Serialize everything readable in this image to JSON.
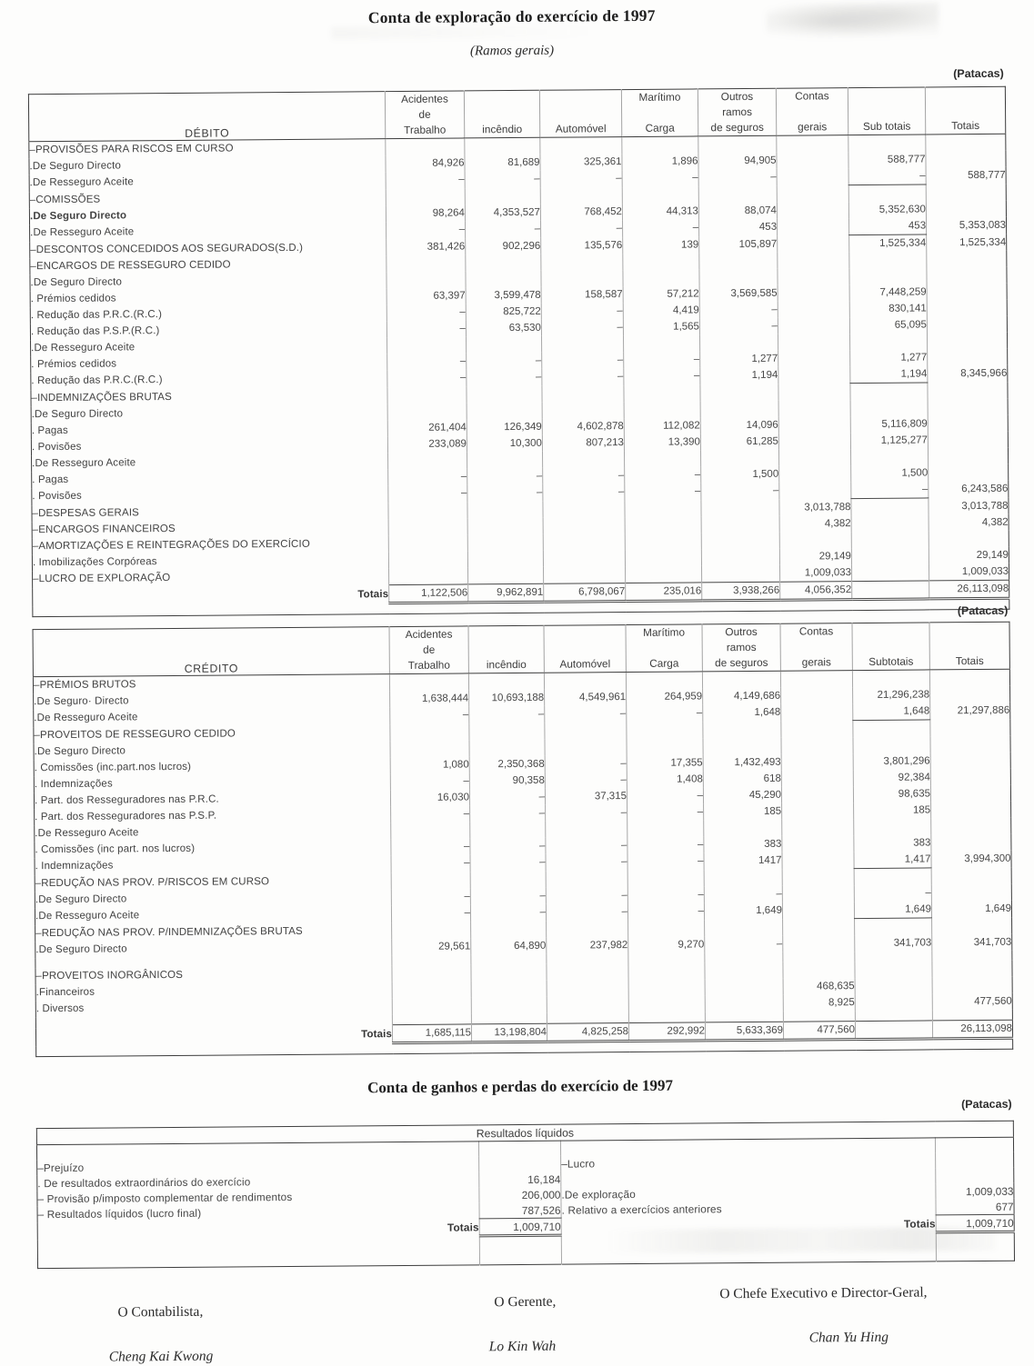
{
  "page": {
    "title": "Conta de exploração do exercício de 1997",
    "subtitle": "(Ramos gerais)",
    "currency_note": "(Patacas)",
    "second_title": "Conta de ganhos e perdas do exercício de 1997"
  },
  "tables": [
    {
      "name": "debito",
      "label_header": "DÉBITO",
      "columns": [
        {
          "lines": [
            "Acidentes",
            "de",
            "Trabalho"
          ]
        },
        {
          "lines": [
            "",
            "",
            "incêndio"
          ]
        },
        {
          "lines": [
            "",
            "",
            "Automóvel"
          ]
        },
        {
          "lines": [
            "Marítimo",
            "",
            "Carga"
          ]
        },
        {
          "lines": [
            "Outros",
            "ramos",
            "de seguros"
          ]
        },
        {
          "lines": [
            "Contas",
            "",
            "gerais"
          ]
        },
        {
          "lines": [
            "",
            "",
            "Sub totais"
          ]
        },
        {
          "lines": [
            "",
            "",
            "Totais"
          ]
        }
      ],
      "rows": [
        {
          "label": "–PROVISÕES PARA RISCOS EM CURSO",
          "indent": 0
        },
        {
          "label": ".De Seguro Directo",
          "indent": 1,
          "cells": [
            "84,926",
            "81,689",
            "325,361",
            "1,896",
            "94,905",
            "",
            "588,777",
            ""
          ]
        },
        {
          "label": ".De Resseguro Aceite",
          "indent": 1,
          "cells": [
            "–",
            "–",
            "–",
            "–",
            "–",
            "",
            "–",
            "588,777"
          ],
          "sub_rule": true
        },
        {
          "label": "–COMISSÕES",
          "indent": 0
        },
        {
          "label": ".De Seguro Directo",
          "indent": 1,
          "bold": true,
          "cells": [
            "98,264",
            "4,353,527",
            "768,452",
            "44,313",
            "88,074",
            "",
            "5,352,630",
            ""
          ]
        },
        {
          "label": ".De Resseguro Aceite",
          "indent": 1,
          "cells": [
            "–",
            "–",
            "–",
            "–",
            "453",
            "",
            "453",
            "5,353,083"
          ],
          "sub_rule": true
        },
        {
          "label": "–DESCONTOS CONCEDIDOS AOS SEGURADOS(S.D.)",
          "indent": 0,
          "cells": [
            "381,426",
            "902,296",
            "135,576",
            "139",
            "105,897",
            "",
            "1,525,334",
            "1,525,334"
          ]
        },
        {
          "label": "–ENCARGOS DE RESSEGURO CEDIDO",
          "indent": 0
        },
        {
          "label": ".De Seguro Directo",
          "indent": 1
        },
        {
          "label": ". Prémios cedidos",
          "indent": 2,
          "cells": [
            "63,397",
            "3,599,478",
            "158,587",
            "57,212",
            "3,569,585",
            "",
            "7,448,259",
            ""
          ]
        },
        {
          "label": ". Redução das P.R.C.(R.C.)",
          "indent": 2,
          "cells": [
            "–",
            "825,722",
            "–",
            "4,419",
            "–",
            "",
            "830,141",
            ""
          ]
        },
        {
          "label": ". Redução das P.S.P.(R.C.)",
          "indent": 2,
          "cells": [
            "–",
            "63,530",
            "–",
            "1,565",
            "–",
            "",
            "65,095",
            ""
          ]
        },
        {
          "label": ".De Resseguro Aceite",
          "indent": 1
        },
        {
          "label": ". Prémios cedidos",
          "indent": 2,
          "cells": [
            "–",
            "–",
            "–",
            "–",
            "1,277",
            "",
            "1,277",
            ""
          ]
        },
        {
          "label": ". Redução das P.R.C.(R.C.)",
          "indent": 2,
          "cells": [
            "–",
            "–",
            "–",
            "–",
            "1,194",
            "",
            "1,194",
            "8,345,966"
          ],
          "sub_rule": true
        },
        {
          "label": "–INDEMNIZAÇÕES BRUTAS",
          "indent": 0
        },
        {
          "label": ".De Seguro Directo",
          "indent": 1
        },
        {
          "label": ". Pagas",
          "indent": 2,
          "cells": [
            "261,404",
            "126,349",
            "4,602,878",
            "112,082",
            "14,096",
            "",
            "5,116,809",
            ""
          ]
        },
        {
          "label": ". Povisões",
          "indent": 2,
          "cells": [
            "233,089",
            "10,300",
            "807,213",
            "13,390",
            "61,285",
            "",
            "1,125,277",
            ""
          ]
        },
        {
          "label": ".De Resseguro Aceite",
          "indent": 1
        },
        {
          "label": ". Pagas",
          "indent": 2,
          "cells": [
            "–",
            "–",
            "–",
            "–",
            "1,500",
            "",
            "1,500",
            ""
          ]
        },
        {
          "label": ". Povisões",
          "indent": 2,
          "cells": [
            "–",
            "–",
            "–",
            "–",
            "–",
            "",
            "–",
            "6,243,586"
          ],
          "sub_rule": true
        },
        {
          "label": "–DESPESAS GERAIS",
          "indent": 0,
          "cells": [
            "",
            "",
            "",
            "",
            "",
            "3,013,788",
            "",
            "3,013,788"
          ]
        },
        {
          "label": "–ENCARGOS FINANCEIROS",
          "indent": 0,
          "cells": [
            "",
            "",
            "",
            "",
            "",
            "4,382",
            "",
            "4,382"
          ]
        },
        {
          "label": "–AMORTIZAÇÕES E REINTEGRAÇÕES DO EXERCÍCIO",
          "indent": 0
        },
        {
          "label": ". Imobilizações Corpóreas",
          "indent": 2,
          "cells": [
            "",
            "",
            "",
            "",
            "",
            "29,149",
            "",
            "29,149"
          ]
        },
        {
          "label": "–LUCRO DE EXPLORAÇÃO",
          "indent": 0,
          "cells": [
            "",
            "",
            "",
            "",
            "",
            "1,009,033",
            "",
            "1,009,033"
          ]
        }
      ],
      "totals": {
        "label": "Totais",
        "cells": [
          "1,122,506",
          "9,962,891",
          "6,798,067",
          "235,016",
          "3,938,266",
          "4,056,352",
          "",
          "26,113,098"
        ]
      }
    },
    {
      "name": "credito",
      "label_header": "CRÉDITO",
      "columns": [
        {
          "lines": [
            "Acidentes",
            "de",
            "Trabalho"
          ]
        },
        {
          "lines": [
            "",
            "",
            "incêndio"
          ]
        },
        {
          "lines": [
            "",
            "",
            "Automóvel"
          ]
        },
        {
          "lines": [
            "Marítimo",
            "",
            "Carga"
          ]
        },
        {
          "lines": [
            "Outros",
            "ramos",
            "de seguros"
          ]
        },
        {
          "lines": [
            "Contas",
            "",
            "gerais"
          ]
        },
        {
          "lines": [
            "",
            "",
            "Subtotais"
          ]
        },
        {
          "lines": [
            "",
            "",
            "Totais"
          ]
        }
      ],
      "rows": [
        {
          "label": "–PRÉMIOS BRUTOS",
          "indent": 0
        },
        {
          "label": ".De Seguro· Directo",
          "indent": 1,
          "cells": [
            "1,638,444",
            "10,693,188",
            "4,549,961",
            "264,959",
            "4,149,686",
            "",
            "21,296,238",
            ""
          ]
        },
        {
          "label": ".De Resseguro Aceite",
          "indent": 1,
          "cells": [
            "–",
            "–",
            "–",
            "–",
            "1,648",
            "",
            "1,648",
            "21,297,886"
          ],
          "sub_rule": true
        },
        {
          "label": "–PROVEITOS DE RESSEGURO CEDIDO",
          "indent": 0
        },
        {
          "label": ".De Seguro  Directo",
          "indent": 1
        },
        {
          "label": ". Comissões (inc.part.nos lucros)",
          "indent": 2,
          "cells": [
            "1,080",
            "2,350,368",
            "–",
            "17,355",
            "1,432,493",
            "",
            "3,801,296",
            ""
          ]
        },
        {
          "label": ". Indemnizações",
          "indent": 2,
          "cells": [
            "–",
            "90,358",
            "–",
            "1,408",
            "618",
            "",
            "92,384",
            ""
          ]
        },
        {
          "label": ". Part. dos Resseguradores nas P.R.C.",
          "indent": 2,
          "cells": [
            "16,030",
            "–",
            "37,315",
            "–",
            "45,290",
            "",
            "98,635",
            ""
          ]
        },
        {
          "label": ". Part. dos Resseguradores nas P.S.P.",
          "indent": 2,
          "cells": [
            "–",
            "–",
            "–",
            "–",
            "185",
            "",
            "185",
            ""
          ]
        },
        {
          "label": ".De Resseguro Aceite",
          "indent": 1
        },
        {
          "label": ". Comissões (inc part. nos lucros)",
          "indent": 2,
          "cells": [
            "–",
            "–",
            "–",
            "–",
            "383",
            "",
            "383",
            ""
          ]
        },
        {
          "label": ". Indemnizações",
          "indent": 3,
          "cells": [
            "–",
            "–",
            "–",
            "–",
            "1417",
            "",
            "1,417",
            "3,994,300"
          ],
          "sub_rule": true
        },
        {
          "label": "–REDUÇÃO NAS PROV. P/RISCOS EM CURSO",
          "indent": 0
        },
        {
          "label": ".De Seguro  Directo",
          "indent": 1,
          "cells": [
            "–",
            "–",
            "–",
            "–",
            "–",
            "",
            "–",
            ""
          ]
        },
        {
          "label": ".De Resseguro Aceite",
          "indent": 1,
          "cells": [
            "–",
            "–",
            "–",
            "–",
            "1,649",
            "",
            "1,649",
            "1,649"
          ],
          "sub_rule": true
        },
        {
          "label": "–REDUÇÃO NAS PROV. P/INDEMNIZAÇÕES BRUTAS",
          "indent": 0
        },
        {
          "label": ".De Seguro  Directo",
          "indent": 1,
          "cells": [
            "29,561",
            "64,890",
            "237,982",
            "9,270",
            "–",
            "",
            "341,703",
            "341,703"
          ]
        },
        {
          "spacer": true
        },
        {
          "label": "–PROVEITOS INORGÂNICOS",
          "indent": 0
        },
        {
          "label": ".Financeiros",
          "indent": 1,
          "cells": [
            "",
            "",
            "",
            "",
            "",
            "468,635",
            "",
            ""
          ]
        },
        {
          "label": ". Diversos",
          "indent": 1,
          "cells": [
            "",
            "",
            "",
            "",
            "",
            "8,925",
            "",
            "477,560"
          ]
        },
        {
          "spacer": true
        }
      ],
      "totals": {
        "label": "Totais",
        "cells": [
          "1,685,115",
          "13,198,804",
          "4,825,258",
          "292,992",
          "5,633,369",
          "477,560",
          "",
          "26,113,098"
        ]
      }
    }
  ],
  "results_table": {
    "header": "Resultados líquidos",
    "left_rows": [
      {
        "label": "–Prejuízo",
        "value": ""
      },
      {
        "label": ". De resultados extraordinários do exercício",
        "value": "16,184"
      },
      {
        "label": "– Provisão p/imposto complementar de rendimentos",
        "value": "206,000"
      },
      {
        "label": "– Resultados líquidos (lucro final)",
        "value": "787,526",
        "rule": true
      },
      {
        "label": "Totais",
        "value": "1,009,710",
        "totals": true
      }
    ],
    "right_rows": [
      {
        "label": "–Lucro",
        "value": ""
      },
      {
        "label": "",
        "value": ""
      },
      {
        "label": ".De exploração",
        "value": "1,009,033"
      },
      {
        "label": ". Relativo a exercícios anteriores",
        "value": "677",
        "rule": true
      },
      {
        "label": "Totais",
        "value": "1,009,710",
        "totals": true
      }
    ]
  },
  "signatures": [
    {
      "role": "O Contabilista,",
      "name": "Cheng Kai Kwong"
    },
    {
      "role": "O Gerente,",
      "name": "Lo Kin Wah"
    },
    {
      "role": "O Chefe Executivo e Director-Geral,",
      "name": "Chan Yu Hing"
    }
  ]
}
